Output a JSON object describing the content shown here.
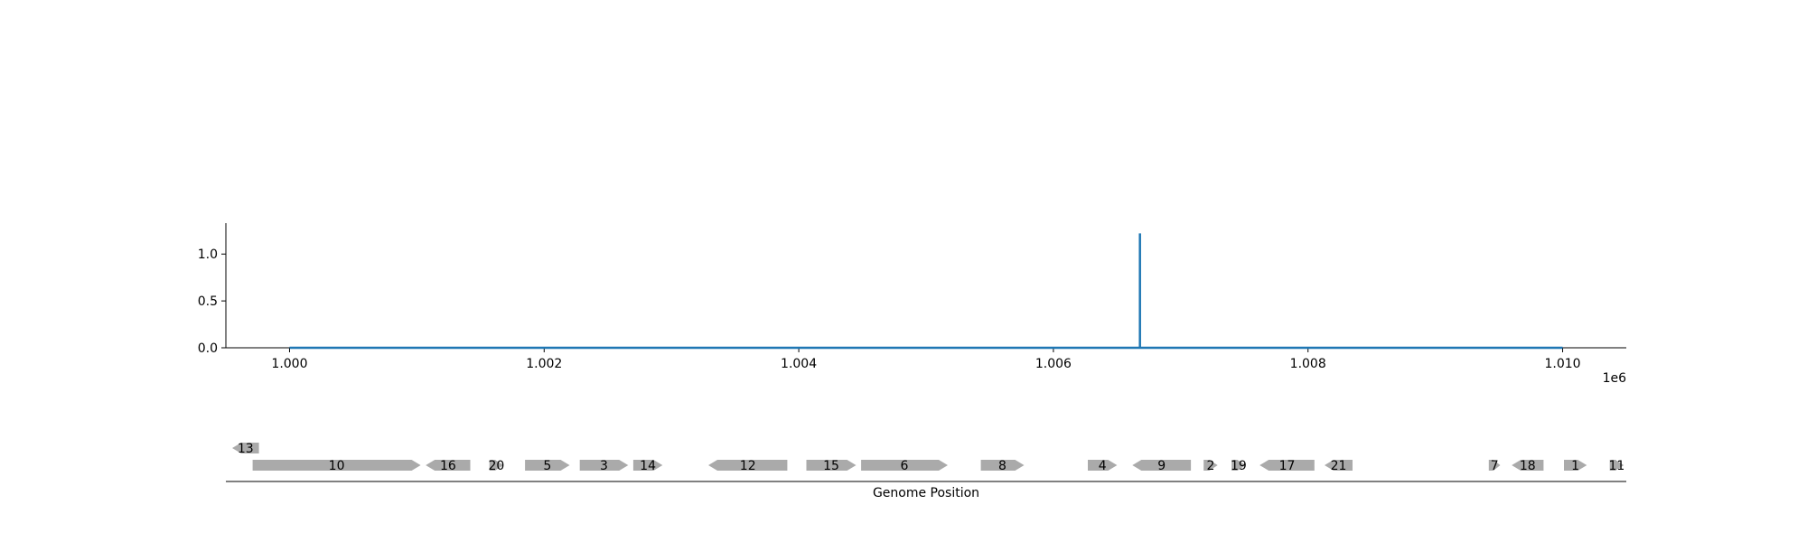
{
  "chart_data": {
    "type": "line",
    "title": "",
    "xlabel": "",
    "ylabel": "",
    "x_offset_label": "1e6",
    "xlim": [
      999500,
      1010500
    ],
    "ylim": [
      0,
      1.33
    ],
    "x_ticks": [
      1000000,
      1002000,
      1004000,
      1006000,
      1008000,
      1010000
    ],
    "x_tick_labels": [
      "1.000",
      "1.002",
      "1.004",
      "1.006",
      "1.008",
      "1.010"
    ],
    "y_ticks": [
      0.0,
      0.5,
      1.0
    ],
    "y_tick_labels": [
      "0.0",
      "0.5",
      "1.0"
    ],
    "series": [
      {
        "color": "#1f77b4",
        "x": [
          1000000,
          1006680,
          1006680,
          1006680,
          1006680,
          1010000
        ],
        "y": [
          0,
          0,
          1.22,
          1.22,
          0,
          0
        ]
      }
    ],
    "gene_track": {
      "xlabel": "Genome Position",
      "gene_color": "#aaaaaa",
      "genes": [
        {
          "label": "13",
          "start": 999550,
          "end": 999760,
          "strand": "-",
          "row": 1
        },
        {
          "label": "10",
          "start": 999710,
          "end": 1001030,
          "strand": "+",
          "row": 0
        },
        {
          "label": "16",
          "start": 1001070,
          "end": 1001420,
          "strand": "-",
          "row": 0
        },
        {
          "label": "20",
          "start": 1001570,
          "end": 1001680,
          "strand": "+",
          "row": 0
        },
        {
          "label": "5",
          "start": 1001850,
          "end": 1002200,
          "strand": "+",
          "row": 0
        },
        {
          "label": "3",
          "start": 1002280,
          "end": 1002660,
          "strand": "+",
          "row": 0
        },
        {
          "label": "14",
          "start": 1002700,
          "end": 1002930,
          "strand": "+",
          "row": 0
        },
        {
          "label": "12",
          "start": 1003290,
          "end": 1003910,
          "strand": "-",
          "row": 0
        },
        {
          "label": "15",
          "start": 1004060,
          "end": 1004450,
          "strand": "+",
          "row": 0
        },
        {
          "label": "6",
          "start": 1004490,
          "end": 1005170,
          "strand": "+",
          "row": 0
        },
        {
          "label": "8",
          "start": 1005430,
          "end": 1005770,
          "strand": "+",
          "row": 0
        },
        {
          "label": "4",
          "start": 1006270,
          "end": 1006500,
          "strand": "+",
          "row": 0
        },
        {
          "label": "9",
          "start": 1006620,
          "end": 1007080,
          "strand": "-",
          "row": 0
        },
        {
          "label": "2",
          "start": 1007180,
          "end": 1007290,
          "strand": "+",
          "row": 0
        },
        {
          "label": "19",
          "start": 1007400,
          "end": 1007510,
          "strand": "+",
          "row": 0
        },
        {
          "label": "17",
          "start": 1007620,
          "end": 1008050,
          "strand": "-",
          "row": 0
        },
        {
          "label": "21",
          "start": 1008130,
          "end": 1008350,
          "strand": "-",
          "row": 0
        },
        {
          "label": "7",
          "start": 1009420,
          "end": 1009510,
          "strand": "+",
          "row": 0
        },
        {
          "label": "18",
          "start": 1009600,
          "end": 1009850,
          "strand": "-",
          "row": 0
        },
        {
          "label": "1",
          "start": 1010010,
          "end": 1010190,
          "strand": "+",
          "row": 0
        },
        {
          "label": "11",
          "start": 1010370,
          "end": 1010480,
          "strand": "+",
          "row": 0
        }
      ]
    }
  }
}
